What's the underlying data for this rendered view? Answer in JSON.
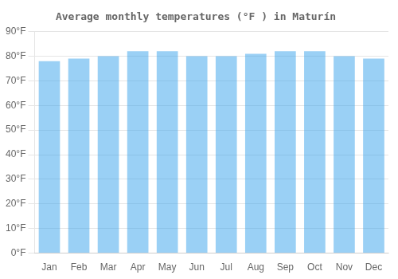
{
  "chart_data": {
    "type": "bar",
    "title": "Average monthly temperatures (°F ) in Maturín",
    "categories": [
      "Jan",
      "Feb",
      "Mar",
      "Apr",
      "May",
      "Jun",
      "Jul",
      "Aug",
      "Sep",
      "Oct",
      "Nov",
      "Dec"
    ],
    "values": [
      78,
      79,
      80,
      82,
      82,
      80,
      80,
      81,
      82,
      82,
      80,
      79
    ],
    "ylim": [
      0,
      90
    ],
    "yticks": [
      {
        "value": 0,
        "label": "0°F"
      },
      {
        "value": 10,
        "label": "10°F"
      },
      {
        "value": 20,
        "label": "20°F"
      },
      {
        "value": 30,
        "label": "30°F"
      },
      {
        "value": 40,
        "label": "40°F"
      },
      {
        "value": 50,
        "label": "50°F"
      },
      {
        "value": 60,
        "label": "60°F"
      },
      {
        "value": 70,
        "label": "70°F"
      },
      {
        "value": 80,
        "label": "80°F"
      },
      {
        "value": 90,
        "label": "90°F"
      }
    ],
    "grid": true
  }
}
